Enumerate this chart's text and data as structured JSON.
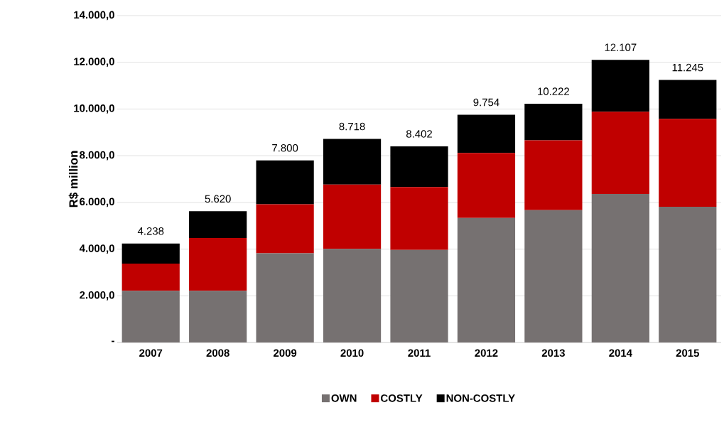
{
  "chart_data": {
    "type": "bar",
    "stacked": true,
    "ylabel": "R$ million",
    "categories": [
      "2007",
      "2008",
      "2009",
      "2010",
      "2011",
      "2012",
      "2013",
      "2014",
      "2015"
    ],
    "series": [
      {
        "name": "OWN",
        "color": "#767171",
        "values": [
          2210,
          2210,
          3820,
          4010,
          3960,
          5330,
          5670,
          6360,
          5810
        ]
      },
      {
        "name": "COSTLY",
        "color": "#c00000",
        "values": [
          1170,
          2260,
          2100,
          2750,
          2700,
          2790,
          2990,
          3520,
          3770
        ]
      },
      {
        "name": "NON-COSTLY",
        "color": "#000000",
        "values": [
          858,
          1150,
          1880,
          1958,
          1742,
          1634,
          1562,
          2227,
          1665
        ]
      }
    ],
    "totals": [
      "4.238",
      "5.620",
      "7.800",
      "8.718",
      "8.402",
      "9.754",
      "10.222",
      "12.107",
      "11.245"
    ],
    "ylim": [
      0,
      14000
    ],
    "yticks": [
      {
        "value": 0,
        "label": "-"
      },
      {
        "value": 2000,
        "label": "2.000,0"
      },
      {
        "value": 4000,
        "label": "4.000,0"
      },
      {
        "value": 6000,
        "label": "6.000,0"
      },
      {
        "value": 8000,
        "label": "8.000,0"
      },
      {
        "value": 10000,
        "label": "10.000,0"
      },
      {
        "value": 12000,
        "label": "12.000,0"
      },
      {
        "value": 14000,
        "label": "14.000,0"
      }
    ],
    "grid": "y",
    "legend": "bottom"
  }
}
